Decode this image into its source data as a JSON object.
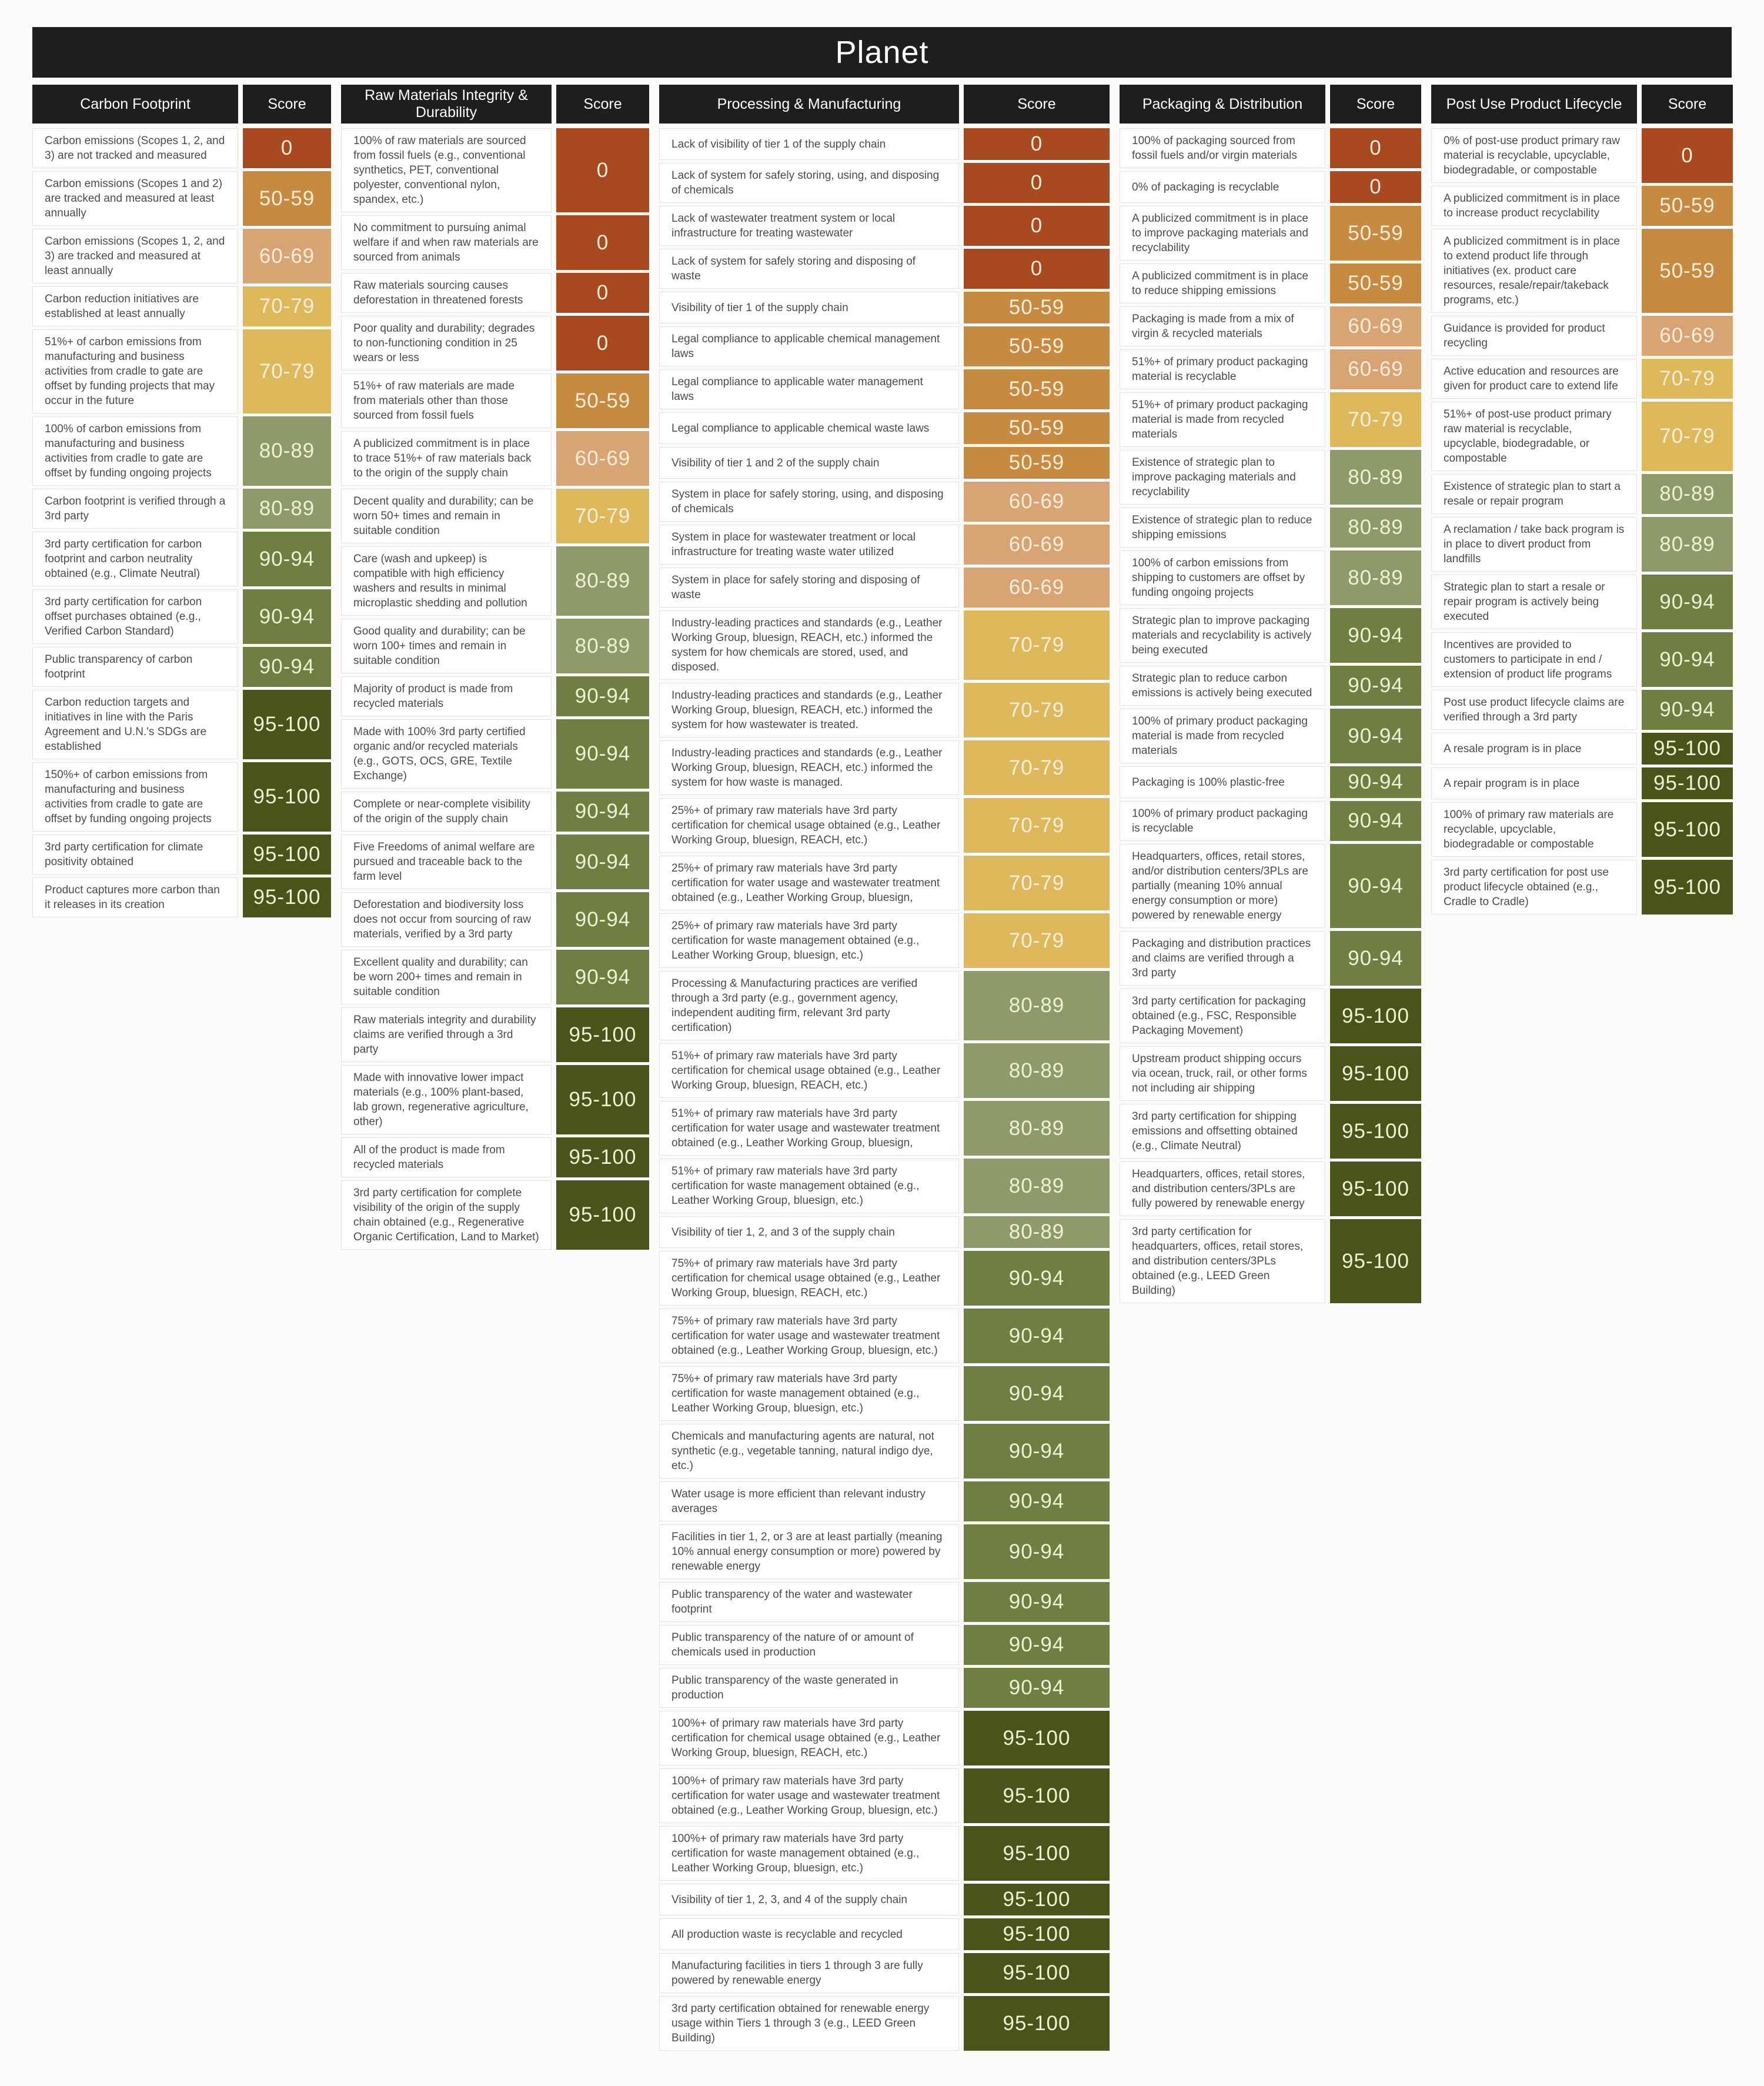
{
  "score_colors": {
    "0": "#a8491f",
    "50-59": "#c68b40",
    "60-69": "#d9a473",
    "70-79": "#ddb95c",
    "80-89": "#8f9a6b",
    "90-94": "#6f7e41",
    "95-100": "#485419"
  },
  "score_text_colors": {
    "warm": "#f8eedb",
    "green": "#edf2d3"
  },
  "header_bg": "#201e1c",
  "chart_data": {
    "type": "table",
    "title": "Planet",
    "score_header": "Score",
    "score_levels": [
      "0",
      "50-59",
      "60-69",
      "70-79",
      "80-89",
      "90-94",
      "95-100"
    ],
    "columns": [
      {
        "header": "Carbon Footprint",
        "score_header": "Score",
        "text_width": 350,
        "score_width": 150,
        "rows": [
          {
            "text": "Carbon emissions (Scopes 1, 2, and 3) are not tracked and measured",
            "score": "0"
          },
          {
            "text": "Carbon emissions (Scopes 1 and 2) are tracked and measured at least annually",
            "score": "50-59"
          },
          {
            "text": "Carbon emissions (Scopes 1, 2, and 3) are tracked and measured at least annually",
            "score": "60-69"
          },
          {
            "text": "Carbon reduction initiatives are established at least annually",
            "score": "70-79"
          },
          {
            "text": "51%+ of carbon emissions from manufacturing and business activities from cradle to gate are offset by funding projects that may occur in the future",
            "score": "70-79"
          },
          {
            "text": "100% of carbon emissions from manufacturing and business activities from cradle to gate are offset by funding ongoing projects",
            "score": "80-89"
          },
          {
            "text": "Carbon footprint is verified through a 3rd party",
            "score": "80-89"
          },
          {
            "text": "3rd party certification for carbon footprint and carbon neutrality obtained (e.g., Climate Neutral)",
            "score": "90-94"
          },
          {
            "text": "3rd party certification for carbon offset purchases obtained (e.g., Verified Carbon Standard)",
            "score": "90-94"
          },
          {
            "text": "Public transparency of carbon footprint",
            "score": "90-94"
          },
          {
            "text": "Carbon reduction targets and initiatives in line with the Paris Agreement and U.N.'s SDGs are established",
            "score": "95-100"
          },
          {
            "text": "150%+ of carbon emissions from manufacturing and business activities from cradle to gate are offset by funding ongoing projects",
            "score": "95-100"
          },
          {
            "text": "3rd party certification for climate positivity obtained",
            "score": "95-100"
          },
          {
            "text": "Product captures more carbon than it releases in its creation",
            "score": "95-100"
          }
        ]
      },
      {
        "header": "Raw Materials Integrity & Durability",
        "score_header": "Score",
        "text_width": 358,
        "score_width": 158,
        "rows": [
          {
            "text": "100% of raw materials are sourced from fossil fuels (e.g., conventional synthetics, PET, conventional polyester, conventional nylon, spandex, etc.)",
            "score": "0"
          },
          {
            "text": "No commitment to pursuing animal welfare if and when raw materials are sourced from animals",
            "score": "0"
          },
          {
            "text": "Raw materials sourcing causes deforestation in threatened forests",
            "score": "0"
          },
          {
            "text": "Poor quality and durability; degrades to non-functioning condition in 25 wears or less",
            "score": "0"
          },
          {
            "text": "51%+ of raw materials are made from materials other than those sourced from fossil fuels",
            "score": "50-59"
          },
          {
            "text": "A publicized commitment is in place to trace 51%+ of raw materials back to the origin of the supply chain",
            "score": "60-69"
          },
          {
            "text": "Decent quality and durability; can be worn 50+ times and remain in suitable condition",
            "score": "70-79"
          },
          {
            "text": "Care (wash and upkeep) is compatible with high efficiency washers and results in minimal microplastic shedding and pollution",
            "score": "80-89"
          },
          {
            "text": "Good quality and durability; can be worn 100+ times and remain in suitable condition",
            "score": "80-89"
          },
          {
            "text": "Majority of product is made from recycled materials",
            "score": "90-94"
          },
          {
            "text": "Made with 100% 3rd party certified organic and/or recycled materials (e.g., GOTS, OCS, GRE, Textile Exchange)",
            "score": "90-94"
          },
          {
            "text": "Complete or near-complete visibility of the origin of the supply chain",
            "score": "90-94"
          },
          {
            "text": "Five Freedoms of animal welfare are pursued and traceable back to the farm level",
            "score": "90-94"
          },
          {
            "text": "Deforestation and biodiversity loss does not occur from sourcing of raw materials, verified by a 3rd party",
            "score": "90-94"
          },
          {
            "text": "Excellent quality and durability; can be worn 200+ times and remain in suitable condition",
            "score": "90-94"
          },
          {
            "text": "Raw materials integrity and durability claims are verified through a 3rd party",
            "score": "95-100"
          },
          {
            "text": "Made with innovative lower impact materials (e.g., 100% plant-based, lab grown, regenerative agriculture, other)",
            "score": "95-100"
          },
          {
            "text": "All of the product is made from recycled materials",
            "score": "95-100"
          },
          {
            "text": "3rd party certification for complete visibility of the origin of the supply chain obtained (e.g., Regenerative Organic Certification, Land to Market)",
            "score": "95-100"
          }
        ]
      },
      {
        "header": "Processing & Manufacturing",
        "score_header": "Score",
        "text_width": 510,
        "score_width": 248,
        "rows": [
          {
            "text": "Lack of visibility of tier 1 of the supply chain",
            "score": "0"
          },
          {
            "text": "Lack of system for safely storing, using, and disposing of chemicals",
            "score": "0"
          },
          {
            "text": "Lack of wastewater treatment system or local infrastructure for treating wastewater",
            "score": "0"
          },
          {
            "text": "Lack of system for safely storing and disposing of waste",
            "score": "0"
          },
          {
            "text": "Visibility of tier 1 of the supply chain",
            "score": "50-59"
          },
          {
            "text": "Legal compliance to applicable chemical management laws",
            "score": "50-59"
          },
          {
            "text": "Legal compliance to applicable water management laws",
            "score": "50-59"
          },
          {
            "text": "Legal compliance to applicable chemical waste laws",
            "score": "50-59"
          },
          {
            "text": "Visibility of tier 1 and 2 of the supply chain",
            "score": "50-59"
          },
          {
            "text": "System in place for safely storing, using, and disposing of chemicals",
            "score": "60-69"
          },
          {
            "text": "System in place for wastewater treatment or local infrastructure for treating waste water utilized",
            "score": "60-69"
          },
          {
            "text": "System in place for safely storing and disposing of waste",
            "score": "60-69"
          },
          {
            "text": "Industry-leading practices and standards (e.g., Leather Working Group, bluesign, REACH, etc.) informed the system for how chemicals are stored, used, and disposed.",
            "score": "70-79"
          },
          {
            "text": "Industry-leading practices and standards (e.g., Leather Working Group, bluesign, REACH, etc.) informed the system for how wastewater is treated.",
            "score": "70-79"
          },
          {
            "text": "Industry-leading practices and standards (e.g., Leather Working Group, bluesign, REACH, etc.) informed the system for how waste is managed.",
            "score": "70-79"
          },
          {
            "text": "25%+ of primary raw materials have 3rd party certification for chemical usage obtained (e.g., Leather Working Group, bluesign, REACH, etc.)",
            "score": "70-79"
          },
          {
            "text": "25%+ of primary raw materials have 3rd party certification for water usage and wastewater treatment obtained (e.g., Leather Working Group, bluesign,",
            "score": "70-79"
          },
          {
            "text": "25%+ of primary raw materials have 3rd party certification for waste management obtained (e.g., Leather Working Group, bluesign, etc.)",
            "score": "70-79"
          },
          {
            "text": "Processing & Manufacturing practices are verified through a 3rd party (e.g., government agency, independent auditing firm, relevant 3rd party certification)",
            "score": "80-89"
          },
          {
            "text": "51%+ of primary raw materials have 3rd party certification for chemical usage obtained (e.g., Leather Working Group, bluesign, REACH, etc.)",
            "score": "80-89"
          },
          {
            "text": "51%+ of primary raw materials have 3rd party certification for water usage and wastewater treatment obtained (e.g., Leather Working Group, bluesign,",
            "score": "80-89"
          },
          {
            "text": "51%+ of primary raw materials have 3rd party certification for waste management obtained (e.g., Leather Working Group, bluesign, etc.)",
            "score": "80-89"
          },
          {
            "text": "Visibility of tier 1, 2, and 3 of the supply chain",
            "score": "80-89"
          },
          {
            "text": "75%+ of primary raw materials have 3rd party certification for chemical usage obtained (e.g., Leather Working Group, bluesign, REACH, etc.)",
            "score": "90-94"
          },
          {
            "text": "75%+ of primary raw materials have 3rd party certification for water usage and wastewater treatment obtained (e.g., Leather Working Group, bluesign, etc.)",
            "score": "90-94"
          },
          {
            "text": "75%+ of primary raw materials have 3rd party certification for waste management obtained (e.g., Leather Working Group, bluesign, etc.)",
            "score": "90-94"
          },
          {
            "text": "Chemicals and manufacturing agents are natural, not synthetic (e.g., vegetable tanning, natural indigo dye, etc.)",
            "score": "90-94"
          },
          {
            "text": "Water usage is more efficient than relevant industry averages",
            "score": "90-94"
          },
          {
            "text": "Facilities in tier 1, 2, or 3 are at least partially (meaning 10% annual energy consumption or more) powered by renewable energy",
            "score": "90-94"
          },
          {
            "text": "Public transparency of the water and wastewater footprint",
            "score": "90-94"
          },
          {
            "text": "Public transparency of the nature of or amount of chemicals used in production",
            "score": "90-94"
          },
          {
            "text": "Public transparency of the waste generated in production",
            "score": "90-94"
          },
          {
            "text": "100%+ of primary raw materials have 3rd party certification for chemical usage obtained (e.g., Leather Working Group, bluesign, REACH, etc.)",
            "score": "95-100"
          },
          {
            "text": "100%+ of primary raw materials have 3rd party certification for water usage and wastewater treatment obtained (e.g., Leather Working Group, bluesign, etc.)",
            "score": "95-100"
          },
          {
            "text": "100%+ of primary raw materials have 3rd party certification for waste management obtained (e.g., Leather Working Group, bluesign, etc.)",
            "score": "95-100"
          },
          {
            "text": "Visibility of tier 1, 2, 3, and 4 of the supply chain",
            "score": "95-100"
          },
          {
            "text": "All production waste is recyclable and recycled",
            "score": "95-100"
          },
          {
            "text": "Manufacturing facilities in tiers 1 through 3 are fully powered by renewable energy",
            "score": "95-100"
          },
          {
            "text": "3rd party certification obtained for renewable energy usage within Tiers 1 through 3 (e.g., LEED Green Building)",
            "score": "95-100"
          }
        ]
      },
      {
        "header": "Packaging & Distribution",
        "score_header": "Score",
        "text_width": 350,
        "score_width": 155,
        "rows": [
          {
            "text": "100% of packaging sourced from fossil fuels and/or virgin materials",
            "score": "0"
          },
          {
            "text": "0% of packaging is recyclable",
            "score": "0"
          },
          {
            "text": "A publicized commitment is in place to improve packaging materials and recyclability",
            "score": "50-59"
          },
          {
            "text": "A publicized commitment is in place to reduce shipping emissions",
            "score": "50-59"
          },
          {
            "text": "Packaging is made from a mix of virgin & recycled materials",
            "score": "60-69"
          },
          {
            "text": "51%+ of primary product packaging material is recyclable",
            "score": "60-69"
          },
          {
            "text": "51%+ of primary product packaging material is made from recycled materials",
            "score": "70-79"
          },
          {
            "text": "Existence of strategic plan to improve packaging materials and recyclability",
            "score": "80-89"
          },
          {
            "text": "Existence of strategic plan to reduce shipping emissions",
            "score": "80-89"
          },
          {
            "text": "100% of carbon emissions from shipping to customers are offset by funding ongoing projects",
            "score": "80-89"
          },
          {
            "text": "Strategic plan to improve packaging materials and recyclability is actively being executed",
            "score": "90-94"
          },
          {
            "text": "Strategic plan to reduce carbon emissions is actively being executed",
            "score": "90-94"
          },
          {
            "text": "100% of primary product packaging material is made from recycled materials",
            "score": "90-94"
          },
          {
            "text": "Packaging is 100% plastic-free",
            "score": "90-94"
          },
          {
            "text": "100% of primary product packaging is recyclable",
            "score": "90-94"
          },
          {
            "text": "Headquarters, offices, retail stores, and/or distribution centers/3PLs are partially (meaning 10% annual energy consumption or more) powered by renewable energy",
            "score": "90-94"
          },
          {
            "text": "Packaging and distribution practices and claims are verified through a 3rd party",
            "score": "90-94"
          },
          {
            "text": "3rd party certification for packaging obtained (e.g., FSC, Responsible Packaging Movement)",
            "score": "95-100"
          },
          {
            "text": "Upstream product shipping occurs via ocean, truck, rail, or other forms not including air shipping",
            "score": "95-100"
          },
          {
            "text": "3rd party certification for shipping emissions and offsetting obtained (e.g., Climate Neutral)",
            "score": "95-100"
          },
          {
            "text": "Headquarters, offices, retail stores, and distribution centers/3PLs are fully powered by renewable energy",
            "score": "95-100"
          },
          {
            "text": "3rd party certification for headquarters, offices, retail stores, and distribution centers/3PLs obtained (e.g., LEED Green Building)",
            "score": "95-100"
          }
        ]
      },
      {
        "header": "Post Use Product Lifecycle",
        "score_header": "Score",
        "text_width": 350,
        "score_width": 155,
        "rows": [
          {
            "text": "0% of post-use product primary raw material is recyclable, upcyclable, biodegradable, or compostable",
            "score": "0"
          },
          {
            "text": "A publicized commitment is in place to increase product recyclability",
            "score": "50-59"
          },
          {
            "text": "A publicized commitment is in place to extend product life through initiatives (ex. product care resources, resale/repair/takeback programs, etc.)",
            "score": "50-59"
          },
          {
            "text": "Guidance is provided for product recycling",
            "score": "60-69"
          },
          {
            "text": "Active education and resources are given for product care to extend life",
            "score": "70-79"
          },
          {
            "text": "51%+ of post-use product primary raw material is recyclable, upcyclable, biodegradable, or compostable",
            "score": "70-79"
          },
          {
            "text": "Existence of strategic plan to start a resale or repair program",
            "score": "80-89"
          },
          {
            "text": "A reclamation / take back program is in place to divert product from landfills",
            "score": "80-89"
          },
          {
            "text": "Strategic plan to start a resale or repair program is actively being executed",
            "score": "90-94"
          },
          {
            "text": "Incentives are provided to customers to participate in end / extension of product life programs",
            "score": "90-94"
          },
          {
            "text": "Post use product lifecycle claims are verified through a 3rd party",
            "score": "90-94"
          },
          {
            "text": "A resale program is in place",
            "score": "95-100"
          },
          {
            "text": "A repair program is in place",
            "score": "95-100"
          },
          {
            "text": "100% of primary raw materials are recyclable, upcyclable, biodegradable or compostable",
            "score": "95-100"
          },
          {
            "text": "3rd party certification for post use product lifecycle obtained (e.g., Cradle to Cradle)",
            "score": "95-100"
          }
        ]
      }
    ]
  }
}
